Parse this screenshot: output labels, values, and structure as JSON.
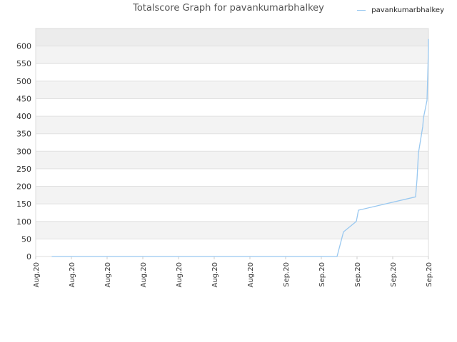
{
  "chart_data": {
    "type": "line",
    "title": "Totalscore Graph for pavankumarbhalkey",
    "xlabel": "",
    "ylabel": "",
    "ylim": [
      0,
      650
    ],
    "yticks": [
      0,
      50,
      100,
      150,
      200,
      250,
      300,
      350,
      400,
      450,
      500,
      550,
      600
    ],
    "xticks": [
      "Aug.20",
      "Aug.20",
      "Aug.20",
      "Aug.20",
      "Aug.20",
      "Aug.20",
      "Aug.20",
      "Sep.20",
      "Sep.20",
      "Sep.20",
      "Sep.20",
      "Sep.20"
    ],
    "xrange": [
      0,
      11
    ],
    "grid": "horizontal bands",
    "legend": "top-right",
    "colors": {
      "line": "#99c8f0",
      "band_light": "#f3f3f3",
      "band_white": "#ffffff",
      "band_top": "#ececec",
      "axis_text": "#333333"
    },
    "series": [
      {
        "name": "pavankumarbhalkey",
        "x": [
          0.45,
          8.44,
          8.62,
          8.98,
          9.04,
          10.64,
          10.68,
          10.72,
          10.76,
          10.8,
          10.84,
          10.86,
          10.96,
          11.0,
          11.0
        ],
        "y": [
          0,
          0,
          70,
          100,
          132,
          170,
          220,
          295,
          320,
          345,
          370,
          395,
          445,
          590,
          620
        ]
      }
    ]
  }
}
